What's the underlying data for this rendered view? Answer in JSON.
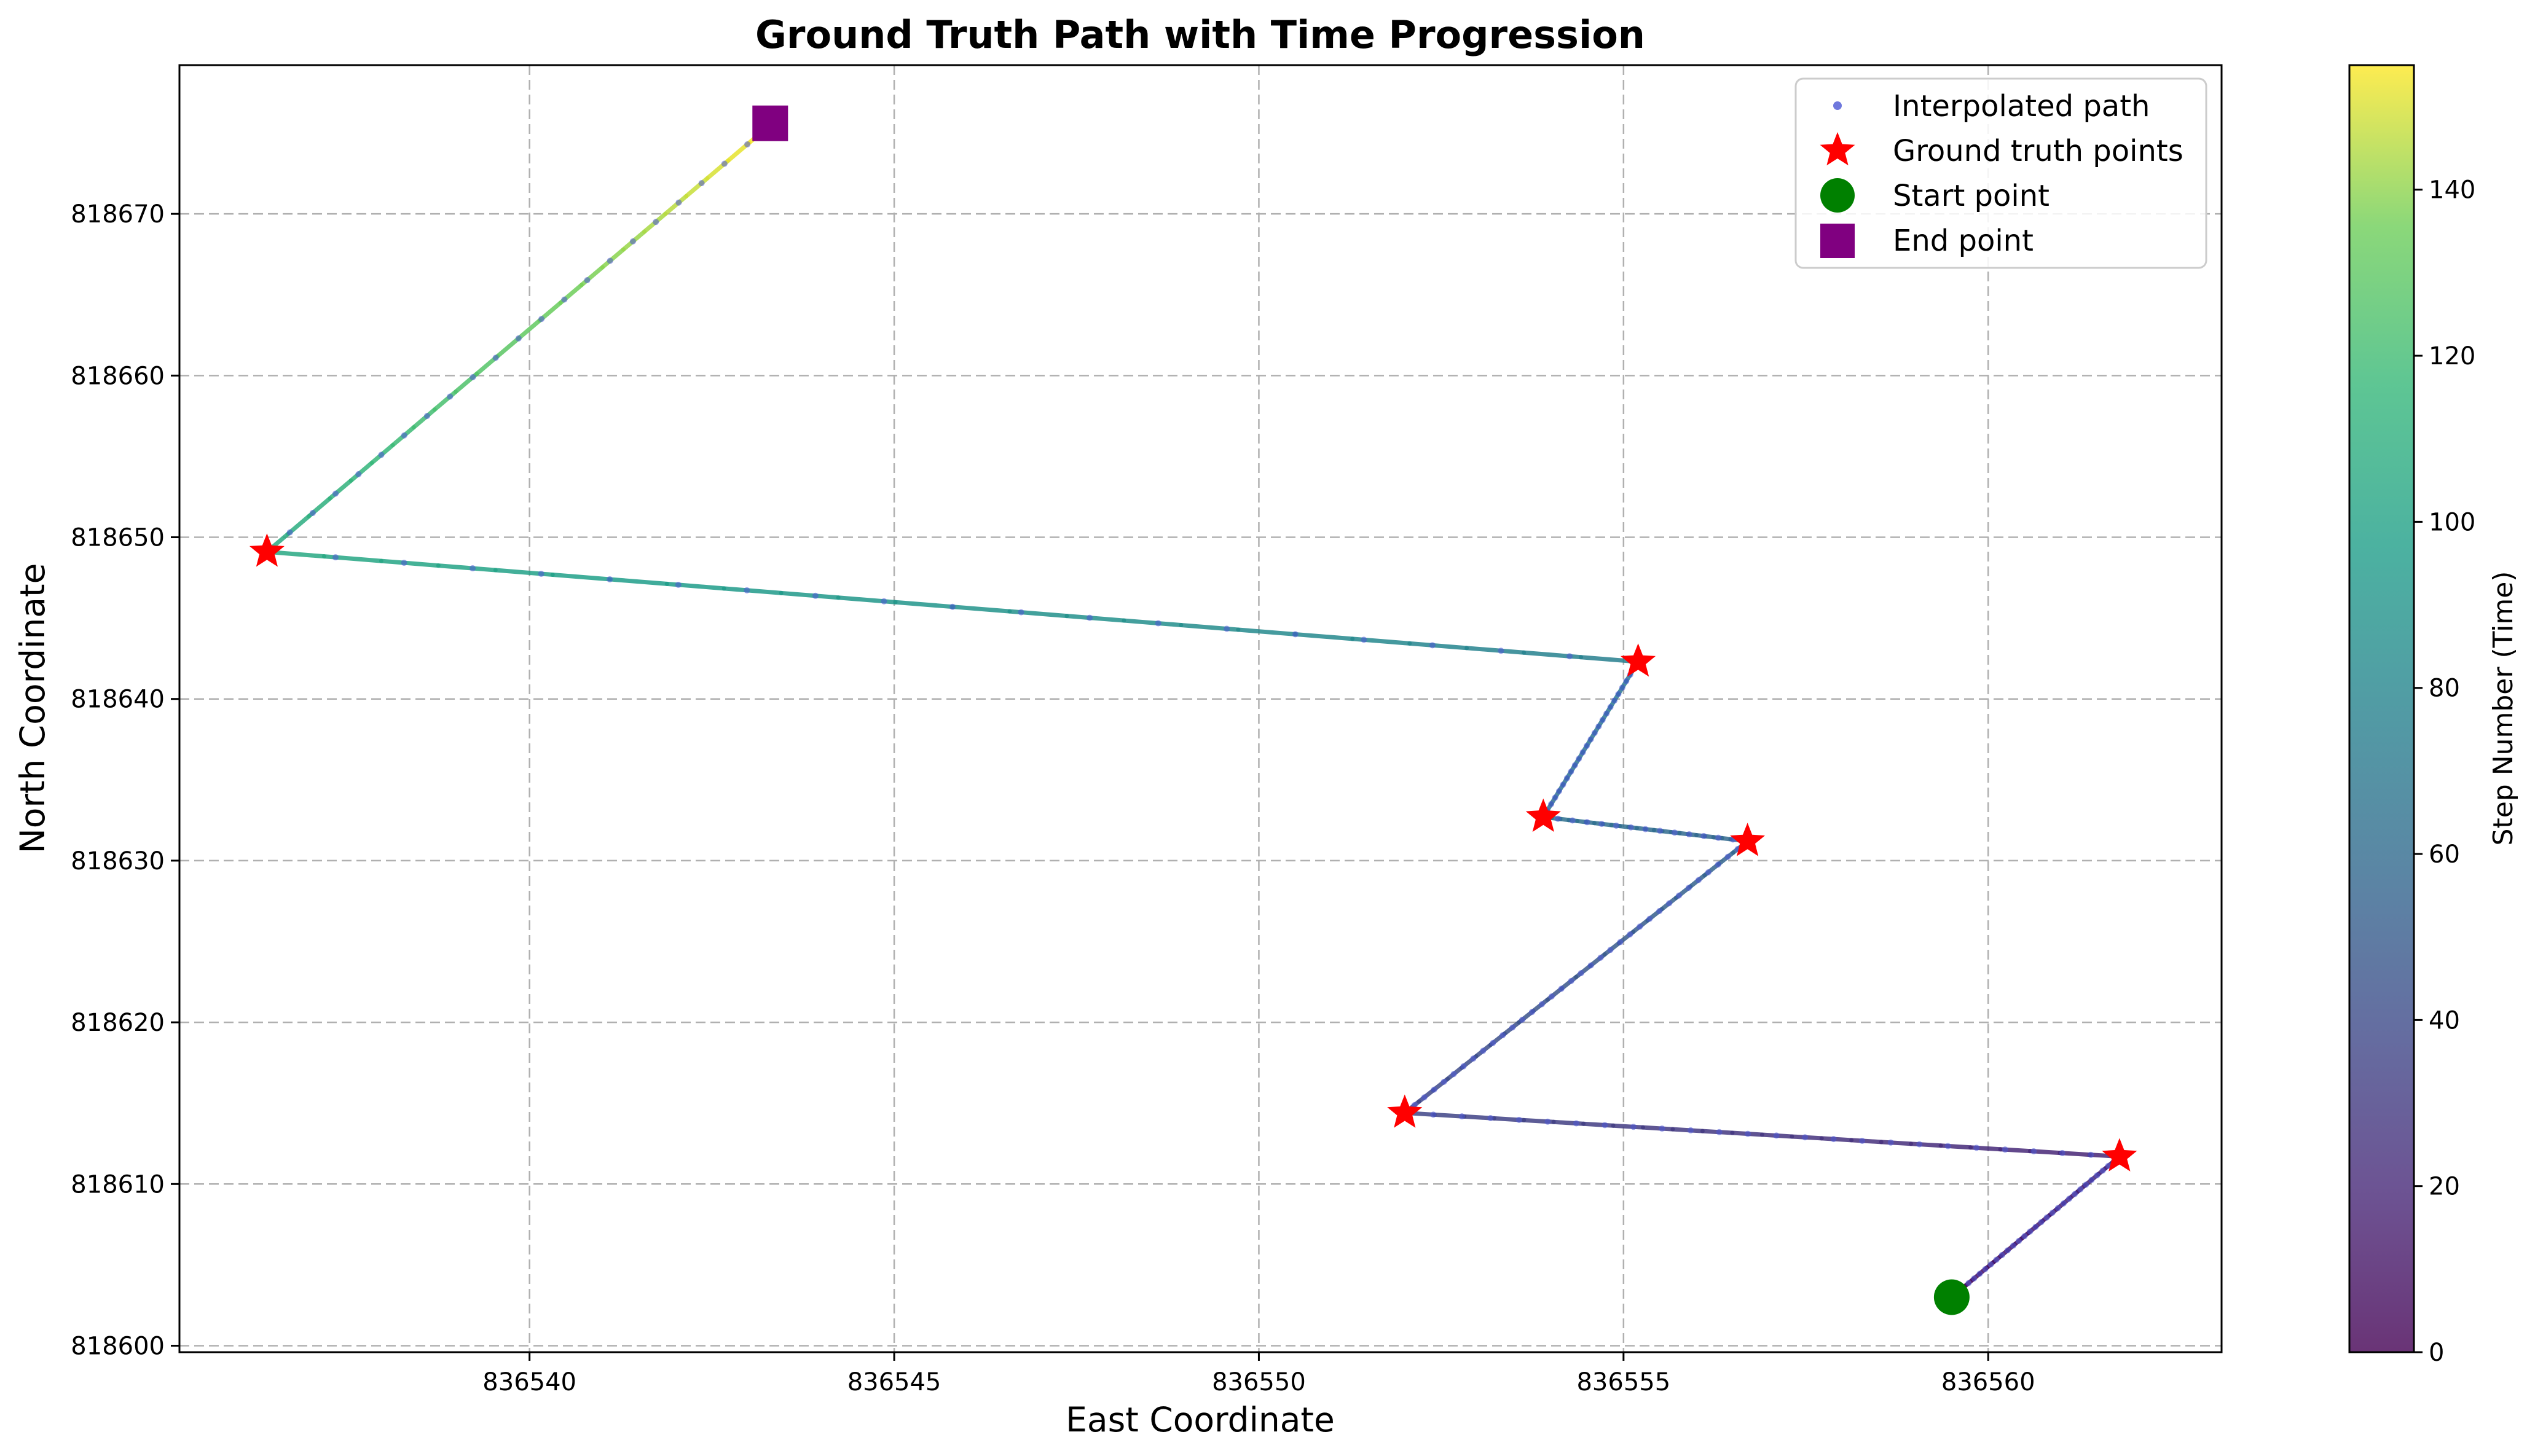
{
  "chart_data": {
    "type": "line",
    "title": "Ground Truth Path with Time Progression",
    "xlabel": "East Coordinate",
    "ylabel": "North Coordinate",
    "xlim": [
      836535.2,
      836563.2
    ],
    "ylim": [
      818599.6,
      818679.2
    ],
    "x_ticks": [
      836540,
      836545,
      836550,
      836555,
      836560
    ],
    "y_ticks": [
      818600,
      818610,
      818620,
      818630,
      818640,
      818650,
      818660,
      818670
    ],
    "grid": true,
    "legend_position": "top-right",
    "legend": [
      {
        "label": "Interpolated path",
        "marker": "dot",
        "color": "#4b56d4"
      },
      {
        "label": "Ground truth points",
        "marker": "star",
        "color": "#ff0000"
      },
      {
        "label": "Start point",
        "marker": "circle",
        "color": "#008000"
      },
      {
        "label": "End point",
        "marker": "square",
        "color": "#800080"
      }
    ],
    "colorbar": {
      "label": "Step Number (Time)",
      "min": 0,
      "max": 155,
      "ticks": [
        0,
        20,
        40,
        60,
        80,
        100,
        120,
        140
      ],
      "colormap": "viridis"
    },
    "ground_truth_points": [
      {
        "x": 836561.8,
        "y": 818611.7
      },
      {
        "x": 836552.0,
        "y": 818614.4
      },
      {
        "x": 836556.7,
        "y": 818631.2
      },
      {
        "x": 836553.9,
        "y": 818632.7
      },
      {
        "x": 836555.2,
        "y": 818642.3
      },
      {
        "x": 836536.4,
        "y": 818649.1
      }
    ],
    "path_vertices": [
      {
        "x": 836559.5,
        "y": 818603.0,
        "step": 0
      },
      {
        "x": 836561.8,
        "y": 818611.7,
        "step": 17
      },
      {
        "x": 836552.0,
        "y": 818614.4,
        "step": 37
      },
      {
        "x": 836556.7,
        "y": 818631.2,
        "step": 57
      },
      {
        "x": 836553.9,
        "y": 818632.7,
        "step": 65
      },
      {
        "x": 836555.2,
        "y": 818642.3,
        "step": 75
      },
      {
        "x": 836536.4,
        "y": 818649.1,
        "step": 105
      },
      {
        "x": 836543.3,
        "y": 818675.5,
        "step": 155
      }
    ],
    "segment_point_counts": [
      30,
      25,
      35,
      14,
      24,
      20,
      22
    ],
    "start_point": {
      "x": 836559.5,
      "y": 818603.0
    },
    "end_point": {
      "x": 836543.3,
      "y": 818675.6
    }
  }
}
